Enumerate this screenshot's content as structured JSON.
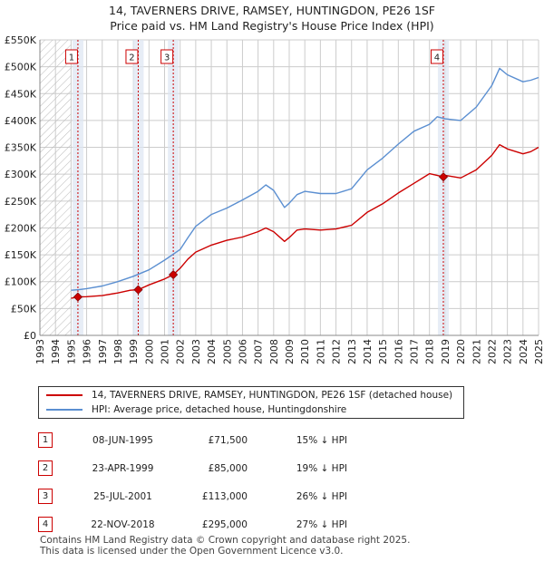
{
  "header": {
    "title_line1": "14, TAVERNERS DRIVE, RAMSEY, HUNTINGDON, PE26 1SF",
    "title_line2": "Price paid vs. HM Land Registry's House Price Index (HPI)"
  },
  "colors": {
    "property": "#cc0000",
    "hpi": "#5b8fd1",
    "band": "#dde6f2",
    "grid": "#cccccc"
  },
  "chart_data": {
    "type": "line",
    "ylim": [
      0,
      550000
    ],
    "xlim": [
      1993,
      2025
    ],
    "y_ticks": [
      0,
      50000,
      100000,
      150000,
      200000,
      250000,
      300000,
      350000,
      400000,
      450000,
      500000,
      550000
    ],
    "y_tick_labels": [
      "£0",
      "£50K",
      "£100K",
      "£150K",
      "£200K",
      "£250K",
      "£300K",
      "£350K",
      "£400K",
      "£450K",
      "£500K",
      "£550K"
    ],
    "x_ticks": [
      1993,
      1994,
      1995,
      1996,
      1997,
      1998,
      1999,
      2000,
      2001,
      2002,
      2003,
      2004,
      2005,
      2006,
      2007,
      2008,
      2009,
      2010,
      2011,
      2012,
      2013,
      2014,
      2015,
      2016,
      2017,
      2018,
      2019,
      2020,
      2021,
      2022,
      2023,
      2024,
      2025
    ],
    "x_tick_labels": [
      "1993",
      "1994",
      "1995",
      "1996",
      "1997",
      "1998",
      "1999",
      "2000",
      "2001",
      "2002",
      "2003",
      "2004",
      "2005",
      "2006",
      "2007",
      "2008",
      "2009",
      "2010",
      "2011",
      "2012",
      "2013",
      "2014",
      "2015",
      "2016",
      "2017",
      "2018",
      "2019",
      "2020",
      "2021",
      "2022",
      "2023",
      "2024",
      "2025"
    ],
    "hatch_range": [
      1993,
      1995.0
    ],
    "grid": true,
    "series": [
      {
        "name": "14, TAVERNERS DRIVE, RAMSEY, HUNTINGDON, PE26 1SF (detached house)",
        "x": [
          1995.0,
          1995.44,
          1996.0,
          1997.0,
          1998.0,
          1998.8,
          1999.31,
          2000.0,
          2001.0,
          2001.56,
          2002.0,
          2002.5,
          2003.0,
          2004.0,
          2005.0,
          2006.0,
          2007.0,
          2007.5,
          2008.0,
          2008.7,
          2009.0,
          2009.5,
          2010.0,
          2011.0,
          2012.0,
          2013.0,
          2014.0,
          2015.0,
          2016.0,
          2017.0,
          2018.0,
          2018.89,
          2019.0,
          2020.0,
          2021.0,
          2022.0,
          2022.5,
          2023.0,
          2024.0,
          2024.5,
          2025.0
        ],
        "values": [
          69000,
          71500,
          72000,
          74000,
          79000,
          84000,
          85000,
          94000,
          105000,
          113000,
          125000,
          142000,
          155000,
          168000,
          177000,
          183000,
          193000,
          200000,
          193000,
          175000,
          182000,
          196000,
          198000,
          196000,
          198000,
          205000,
          229000,
          245000,
          265000,
          283000,
          301000,
          295000,
          298000,
          293000,
          308000,
          335000,
          355000,
          347000,
          338000,
          342000,
          350000
        ]
      },
      {
        "name": "HPI: Average price, detached house, Huntingdonshire",
        "x": [
          1995.0,
          1995.5,
          1996.0,
          1997.0,
          1998.0,
          1999.0,
          2000.0,
          2001.0,
          2002.0,
          2002.5,
          2003.0,
          2004.0,
          2005.0,
          2006.0,
          2007.0,
          2007.5,
          2008.0,
          2008.7,
          2009.0,
          2009.5,
          2010.0,
          2011.0,
          2012.0,
          2013.0,
          2014.0,
          2015.0,
          2016.0,
          2017.0,
          2018.0,
          2018.5,
          2019.0,
          2020.0,
          2021.0,
          2022.0,
          2022.5,
          2023.0,
          2024.0,
          2024.5,
          2025.0
        ],
        "values": [
          84000,
          85000,
          87000,
          92000,
          100000,
          110000,
          122000,
          140000,
          160000,
          182000,
          203000,
          225000,
          237000,
          252000,
          268000,
          280000,
          270000,
          238000,
          246000,
          262000,
          268000,
          264000,
          264000,
          273000,
          308000,
          330000,
          356000,
          380000,
          393000,
          407000,
          403000,
          400000,
          425000,
          465000,
          497000,
          485000,
          472000,
          475000,
          480000
        ]
      }
    ],
    "sale_markers": [
      {
        "label": "1",
        "x": 1995.44,
        "value": 71500
      },
      {
        "label": "2",
        "x": 1999.31,
        "value": 85000
      },
      {
        "label": "3",
        "x": 2001.56,
        "value": 113000
      },
      {
        "label": "4",
        "x": 2018.89,
        "value": 295000
      }
    ]
  },
  "legend": {
    "property_label": "14, TAVERNERS DRIVE, RAMSEY, HUNTINGDON, PE26 1SF (detached house)",
    "hpi_label": "HPI: Average price, detached house, Huntingdonshire"
  },
  "sales": [
    {
      "num": "1",
      "date": "08-JUN-1995",
      "price": "£71,500",
      "hpi": "15% ↓ HPI"
    },
    {
      "num": "2",
      "date": "23-APR-1999",
      "price": "£85,000",
      "hpi": "19% ↓ HPI"
    },
    {
      "num": "3",
      "date": "25-JUL-2001",
      "price": "£113,000",
      "hpi": "26% ↓ HPI"
    },
    {
      "num": "4",
      "date": "22-NOV-2018",
      "price": "£295,000",
      "hpi": "27% ↓ HPI"
    }
  ],
  "footer": {
    "line1": "Contains HM Land Registry data © Crown copyright and database right 2025.",
    "line2": "This data is licensed under the Open Government Licence v3.0."
  }
}
